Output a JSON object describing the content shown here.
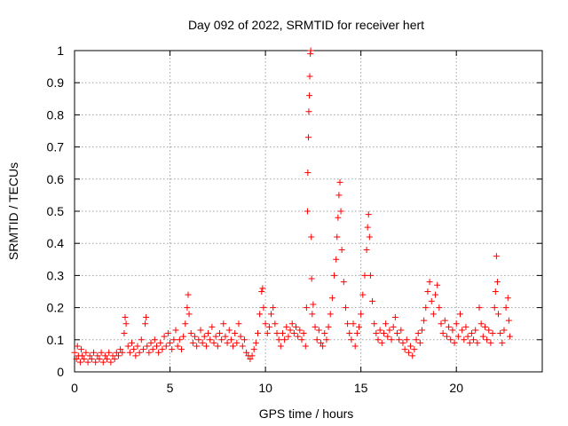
{
  "chart_data": {
    "type": "scatter",
    "title": "Day 092 of 2022, SRMTID for receiver hert",
    "xlabel": "GPS time / hours",
    "ylabel": "SRMTID / TECUs",
    "xlim": [
      0,
      24.5
    ],
    "ylim": [
      0,
      1
    ],
    "grid": true,
    "marker": "+",
    "color": "#ff0000",
    "xticks": [
      0,
      5,
      10,
      15,
      20
    ],
    "xtick_labels": [
      "0",
      "5",
      "10",
      "15",
      "20"
    ],
    "yticks": [
      0,
      0.1,
      0.2,
      0.3,
      0.4,
      0.5,
      0.6,
      0.7,
      0.8,
      0.9,
      1
    ],
    "ytick_labels": [
      "0",
      "0.1",
      "0.2",
      "0.3",
      "0.4",
      "0.5",
      "0.6",
      "0.7",
      "0.8",
      "0.9",
      "1"
    ],
    "x_range_of_data": [
      0,
      22.8
    ],
    "series": [
      {
        "name": "SRMTID",
        "points": [
          [
            0.0,
            0.06
          ],
          [
            0.1,
            0.04
          ],
          [
            0.15,
            0.08
          ],
          [
            0.2,
            0.05
          ],
          [
            0.3,
            0.03
          ],
          [
            0.35,
            0.07
          ],
          [
            0.4,
            0.05
          ],
          [
            0.5,
            0.04
          ],
          [
            0.6,
            0.06
          ],
          [
            0.7,
            0.03
          ],
          [
            0.8,
            0.05
          ],
          [
            0.9,
            0.04
          ],
          [
            1.0,
            0.06
          ],
          [
            1.1,
            0.03
          ],
          [
            1.2,
            0.05
          ],
          [
            1.3,
            0.04
          ],
          [
            1.4,
            0.06
          ],
          [
            1.5,
            0.03
          ],
          [
            1.6,
            0.05
          ],
          [
            1.7,
            0.04
          ],
          [
            1.8,
            0.06
          ],
          [
            1.9,
            0.03
          ],
          [
            2.0,
            0.05
          ],
          [
            2.1,
            0.04
          ],
          [
            2.2,
            0.06
          ],
          [
            2.3,
            0.05
          ],
          [
            2.4,
            0.07
          ],
          [
            2.5,
            0.06
          ],
          [
            2.6,
            0.12
          ],
          [
            2.65,
            0.17
          ],
          [
            2.7,
            0.15
          ],
          [
            2.8,
            0.08
          ],
          [
            2.9,
            0.06
          ],
          [
            3.0,
            0.09
          ],
          [
            3.1,
            0.07
          ],
          [
            3.2,
            0.05
          ],
          [
            3.3,
            0.08
          ],
          [
            3.4,
            0.06
          ],
          [
            3.5,
            0.1
          ],
          [
            3.6,
            0.07
          ],
          [
            3.7,
            0.15
          ],
          [
            3.75,
            0.17
          ],
          [
            3.8,
            0.08
          ],
          [
            3.9,
            0.06
          ],
          [
            4.0,
            0.09
          ],
          [
            4.1,
            0.07
          ],
          [
            4.2,
            0.1
          ],
          [
            4.3,
            0.08
          ],
          [
            4.4,
            0.06
          ],
          [
            4.5,
            0.09
          ],
          [
            4.6,
            0.07
          ],
          [
            4.7,
            0.11
          ],
          [
            4.8,
            0.08
          ],
          [
            4.9,
            0.12
          ],
          [
            5.0,
            0.09
          ],
          [
            5.1,
            0.07
          ],
          [
            5.2,
            0.1
          ],
          [
            5.3,
            0.13
          ],
          [
            5.4,
            0.08
          ],
          [
            5.5,
            0.1
          ],
          [
            5.6,
            0.07
          ],
          [
            5.7,
            0.11
          ],
          [
            5.8,
            0.15
          ],
          [
            5.9,
            0.2
          ],
          [
            5.95,
            0.24
          ],
          [
            6.0,
            0.18
          ],
          [
            6.1,
            0.12
          ],
          [
            6.2,
            0.09
          ],
          [
            6.3,
            0.11
          ],
          [
            6.4,
            0.08
          ],
          [
            6.5,
            0.1
          ],
          [
            6.6,
            0.13
          ],
          [
            6.7,
            0.09
          ],
          [
            6.8,
            0.11
          ],
          [
            6.9,
            0.08
          ],
          [
            7.0,
            0.12
          ],
          [
            7.1,
            0.1
          ],
          [
            7.2,
            0.14
          ],
          [
            7.3,
            0.09
          ],
          [
            7.4,
            0.11
          ],
          [
            7.5,
            0.08
          ],
          [
            7.6,
            0.12
          ],
          [
            7.7,
            0.1
          ],
          [
            7.8,
            0.15
          ],
          [
            7.9,
            0.11
          ],
          [
            8.0,
            0.09
          ],
          [
            8.1,
            0.13
          ],
          [
            8.2,
            0.1
          ],
          [
            8.3,
            0.08
          ],
          [
            8.4,
            0.12
          ],
          [
            8.5,
            0.09
          ],
          [
            8.6,
            0.15
          ],
          [
            8.7,
            0.11
          ],
          [
            8.8,
            0.08
          ],
          [
            8.9,
            0.1
          ],
          [
            9.0,
            0.06
          ],
          [
            9.1,
            0.05
          ],
          [
            9.2,
            0.04
          ],
          [
            9.3,
            0.05
          ],
          [
            9.4,
            0.07
          ],
          [
            9.5,
            0.09
          ],
          [
            9.6,
            0.12
          ],
          [
            9.7,
            0.18
          ],
          [
            9.8,
            0.25
          ],
          [
            9.85,
            0.26
          ],
          [
            9.9,
            0.2
          ],
          [
            10.0,
            0.15
          ],
          [
            10.1,
            0.12
          ],
          [
            10.2,
            0.14
          ],
          [
            10.3,
            0.18
          ],
          [
            10.4,
            0.2
          ],
          [
            10.5,
            0.15
          ],
          [
            10.6,
            0.12
          ],
          [
            10.7,
            0.1
          ],
          [
            10.8,
            0.08
          ],
          [
            10.9,
            0.12
          ],
          [
            11.0,
            0.1
          ],
          [
            11.1,
            0.14
          ],
          [
            11.2,
            0.11
          ],
          [
            11.3,
            0.13
          ],
          [
            11.4,
            0.15
          ],
          [
            11.5,
            0.12
          ],
          [
            11.6,
            0.14
          ],
          [
            11.7,
            0.11
          ],
          [
            11.8,
            0.13
          ],
          [
            11.9,
            0.1
          ],
          [
            12.0,
            0.12
          ],
          [
            12.1,
            0.08
          ],
          [
            12.15,
            0.2
          ],
          [
            12.2,
            0.5
          ],
          [
            12.22,
            0.62
          ],
          [
            12.25,
            0.73
          ],
          [
            12.27,
            0.81
          ],
          [
            12.3,
            0.86
          ],
          [
            12.32,
            0.92
          ],
          [
            12.35,
            0.99
          ],
          [
            12.37,
            1.0
          ],
          [
            12.4,
            0.42
          ],
          [
            12.42,
            0.29
          ],
          [
            12.45,
            0.18
          ],
          [
            12.5,
            0.21
          ],
          [
            12.6,
            0.14
          ],
          [
            12.7,
            0.1
          ],
          [
            12.8,
            0.13
          ],
          [
            12.9,
            0.09
          ],
          [
            13.0,
            0.08
          ],
          [
            13.1,
            0.12
          ],
          [
            13.2,
            0.1
          ],
          [
            13.3,
            0.14
          ],
          [
            13.4,
            0.18
          ],
          [
            13.5,
            0.23
          ],
          [
            13.6,
            0.3
          ],
          [
            13.7,
            0.35
          ],
          [
            13.75,
            0.42
          ],
          [
            13.8,
            0.48
          ],
          [
            13.85,
            0.55
          ],
          [
            13.9,
            0.59
          ],
          [
            13.95,
            0.5
          ],
          [
            14.0,
            0.38
          ],
          [
            14.1,
            0.28
          ],
          [
            14.2,
            0.2
          ],
          [
            14.3,
            0.15
          ],
          [
            14.4,
            0.12
          ],
          [
            14.5,
            0.1
          ],
          [
            14.6,
            0.15
          ],
          [
            14.7,
            0.08
          ],
          [
            14.8,
            0.12
          ],
          [
            14.9,
            0.14
          ],
          [
            15.0,
            0.18
          ],
          [
            15.1,
            0.24
          ],
          [
            15.2,
            0.3
          ],
          [
            15.3,
            0.38
          ],
          [
            15.35,
            0.45
          ],
          [
            15.4,
            0.49
          ],
          [
            15.45,
            0.42
          ],
          [
            15.5,
            0.3
          ],
          [
            15.6,
            0.22
          ],
          [
            15.7,
            0.15
          ],
          [
            15.8,
            0.12
          ],
          [
            15.9,
            0.1
          ],
          [
            16.0,
            0.13
          ],
          [
            16.1,
            0.09
          ],
          [
            16.2,
            0.12
          ],
          [
            16.3,
            0.15
          ],
          [
            16.4,
            0.11
          ],
          [
            16.5,
            0.13
          ],
          [
            16.6,
            0.1
          ],
          [
            16.7,
            0.14
          ],
          [
            16.8,
            0.17
          ],
          [
            16.9,
            0.12
          ],
          [
            17.0,
            0.1
          ],
          [
            17.1,
            0.13
          ],
          [
            17.2,
            0.09
          ],
          [
            17.3,
            0.07
          ],
          [
            17.4,
            0.1
          ],
          [
            17.5,
            0.06
          ],
          [
            17.6,
            0.08
          ],
          [
            17.7,
            0.05
          ],
          [
            17.8,
            0.07
          ],
          [
            17.9,
            0.1
          ],
          [
            18.0,
            0.12
          ],
          [
            18.1,
            0.09
          ],
          [
            18.2,
            0.13
          ],
          [
            18.3,
            0.16
          ],
          [
            18.4,
            0.2
          ],
          [
            18.5,
            0.25
          ],
          [
            18.6,
            0.28
          ],
          [
            18.7,
            0.22
          ],
          [
            18.8,
            0.18
          ],
          [
            18.9,
            0.24
          ],
          [
            19.0,
            0.27
          ],
          [
            19.1,
            0.2
          ],
          [
            19.2,
            0.15
          ],
          [
            19.3,
            0.12
          ],
          [
            19.4,
            0.16
          ],
          [
            19.5,
            0.11
          ],
          [
            19.6,
            0.14
          ],
          [
            19.7,
            0.1
          ],
          [
            19.8,
            0.13
          ],
          [
            19.9,
            0.09
          ],
          [
            20.0,
            0.15
          ],
          [
            20.1,
            0.11
          ],
          [
            20.2,
            0.18
          ],
          [
            20.3,
            0.13
          ],
          [
            20.4,
            0.1
          ],
          [
            20.5,
            0.14
          ],
          [
            20.6,
            0.11
          ],
          [
            20.7,
            0.09
          ],
          [
            20.8,
            0.12
          ],
          [
            20.9,
            0.1
          ],
          [
            21.0,
            0.13
          ],
          [
            21.1,
            0.09
          ],
          [
            21.2,
            0.2
          ],
          [
            21.3,
            0.15
          ],
          [
            21.4,
            0.11
          ],
          [
            21.5,
            0.14
          ],
          [
            21.6,
            0.1
          ],
          [
            21.7,
            0.13
          ],
          [
            21.8,
            0.09
          ],
          [
            21.9,
            0.12
          ],
          [
            22.0,
            0.2
          ],
          [
            22.05,
            0.25
          ],
          [
            22.1,
            0.36
          ],
          [
            22.15,
            0.28
          ],
          [
            22.2,
            0.18
          ],
          [
            22.3,
            0.12
          ],
          [
            22.4,
            0.09
          ],
          [
            22.5,
            0.13
          ],
          [
            22.6,
            0.2
          ],
          [
            22.7,
            0.23
          ],
          [
            22.75,
            0.16
          ],
          [
            22.8,
            0.11
          ]
        ]
      }
    ]
  }
}
